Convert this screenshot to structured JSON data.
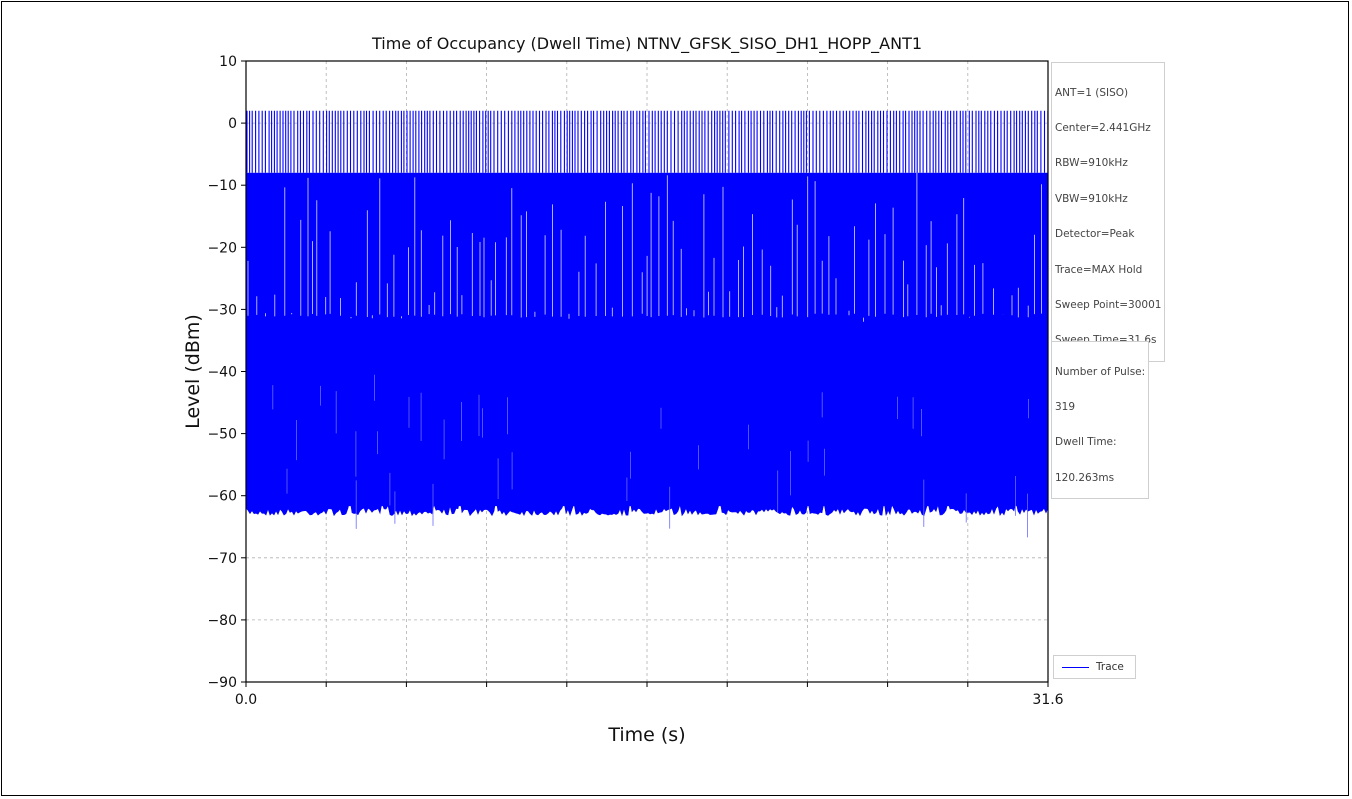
{
  "chart_data": {
    "type": "line",
    "title": "Time of Occupancy (Dwell Time) NTNV_GFSK_SISO_DH1_HOPP_ANT1",
    "xlabel": "Time (s)",
    "ylabel": "Level (dBm)",
    "xlim": [
      0.0,
      31.6
    ],
    "ylim": [
      -90,
      10
    ],
    "x_tick_labels": [
      "0.0",
      "31.6"
    ],
    "y_ticks": [
      10,
      0,
      -10,
      -20,
      -30,
      -40,
      -50,
      -60,
      -70,
      -80,
      -90
    ],
    "y_tick_labels": [
      "10",
      "0",
      "−10",
      "−20",
      "−30",
      "−40",
      "−50",
      "−60",
      "−70",
      "−80",
      "−90"
    ],
    "grid": true,
    "legend_position": "lower-right",
    "series": [
      {
        "name": "Trace",
        "color": "#0000ff",
        "sweep_points": 30001,
        "peak_level_dBm": 2,
        "dense_envelope_top_dBm": -8,
        "noise_floor_dBm": -62,
        "mid_band_top_dBm": -31
      }
    ]
  },
  "info_box": {
    "lines": [
      "ANT=1 (SISO)",
      "Center=2.441GHz",
      "RBW=910kHz",
      "VBW=910kHz",
      "Detector=Peak",
      "Trace=MAX Hold",
      "Sweep Point=30001",
      "Sweep Time=31.6s"
    ]
  },
  "result_box": {
    "lines": [
      "Number of Pulse:",
      "319",
      "Dwell Time:",
      "120.263ms"
    ]
  },
  "legend": {
    "label": "Trace"
  }
}
